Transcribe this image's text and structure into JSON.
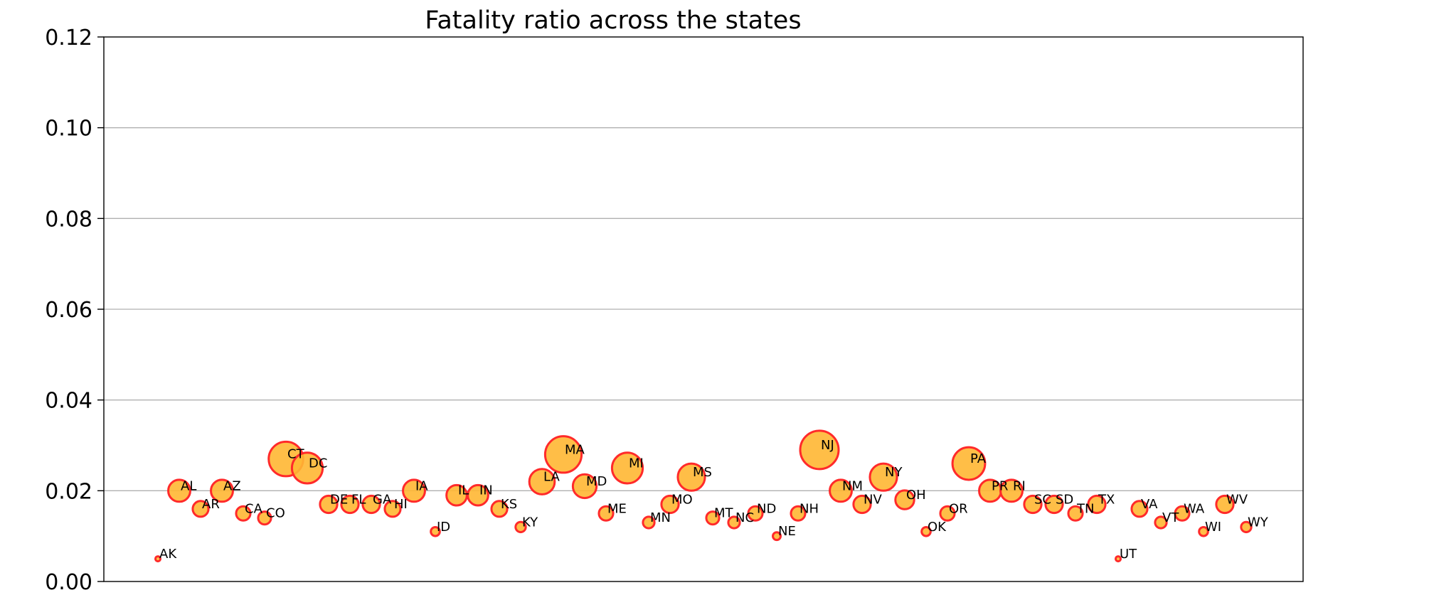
{
  "chart_data": {
    "type": "scatter",
    "title": "Fatality ratio across the states",
    "xlabel": "",
    "ylabel": "",
    "ylim": [
      0,
      0.12
    ],
    "yticks": [
      "0.00",
      "0.02",
      "0.04",
      "0.06",
      "0.08",
      "0.10",
      "0.12"
    ],
    "grid": "horizontal",
    "marker": "bubble",
    "colors": {
      "fill": "#ffb733",
      "edge": "#ff2a2a"
    },
    "points": [
      {
        "state": "AK",
        "y": 0.005
      },
      {
        "state": "AL",
        "y": 0.02
      },
      {
        "state": "AR",
        "y": 0.016
      },
      {
        "state": "AZ",
        "y": 0.02
      },
      {
        "state": "CA",
        "y": 0.015
      },
      {
        "state": "CO",
        "y": 0.014
      },
      {
        "state": "CT",
        "y": 0.027
      },
      {
        "state": "DC",
        "y": 0.025
      },
      {
        "state": "DE",
        "y": 0.017
      },
      {
        "state": "FL",
        "y": 0.017
      },
      {
        "state": "GA",
        "y": 0.017
      },
      {
        "state": "HI",
        "y": 0.016
      },
      {
        "state": "IA",
        "y": 0.02
      },
      {
        "state": "ID",
        "y": 0.011
      },
      {
        "state": "IL",
        "y": 0.019
      },
      {
        "state": "IN",
        "y": 0.019
      },
      {
        "state": "KS",
        "y": 0.016
      },
      {
        "state": "KY",
        "y": 0.012
      },
      {
        "state": "LA",
        "y": 0.022
      },
      {
        "state": "MA",
        "y": 0.028
      },
      {
        "state": "MD",
        "y": 0.021
      },
      {
        "state": "ME",
        "y": 0.015
      },
      {
        "state": "MI",
        "y": 0.025
      },
      {
        "state": "MN",
        "y": 0.013
      },
      {
        "state": "MO",
        "y": 0.017
      },
      {
        "state": "MS",
        "y": 0.023
      },
      {
        "state": "MT",
        "y": 0.014
      },
      {
        "state": "NC",
        "y": 0.013
      },
      {
        "state": "ND",
        "y": 0.015
      },
      {
        "state": "NE",
        "y": 0.01
      },
      {
        "state": "NH",
        "y": 0.015
      },
      {
        "state": "NJ",
        "y": 0.029
      },
      {
        "state": "NM",
        "y": 0.02
      },
      {
        "state": "NV",
        "y": 0.017
      },
      {
        "state": "NY",
        "y": 0.023
      },
      {
        "state": "OH",
        "y": 0.018
      },
      {
        "state": "OK",
        "y": 0.011
      },
      {
        "state": "OR",
        "y": 0.015
      },
      {
        "state": "PA",
        "y": 0.026
      },
      {
        "state": "PR",
        "y": 0.02
      },
      {
        "state": "RI",
        "y": 0.02
      },
      {
        "state": "SC",
        "y": 0.017
      },
      {
        "state": "SD",
        "y": 0.017
      },
      {
        "state": "TN",
        "y": 0.015
      },
      {
        "state": "TX",
        "y": 0.017
      },
      {
        "state": "UT",
        "y": 0.005
      },
      {
        "state": "VA",
        "y": 0.016
      },
      {
        "state": "VT",
        "y": 0.013
      },
      {
        "state": "WA",
        "y": 0.015
      },
      {
        "state": "WI",
        "y": 0.011
      },
      {
        "state": "WV",
        "y": 0.017
      },
      {
        "state": "WY",
        "y": 0.012
      }
    ]
  }
}
